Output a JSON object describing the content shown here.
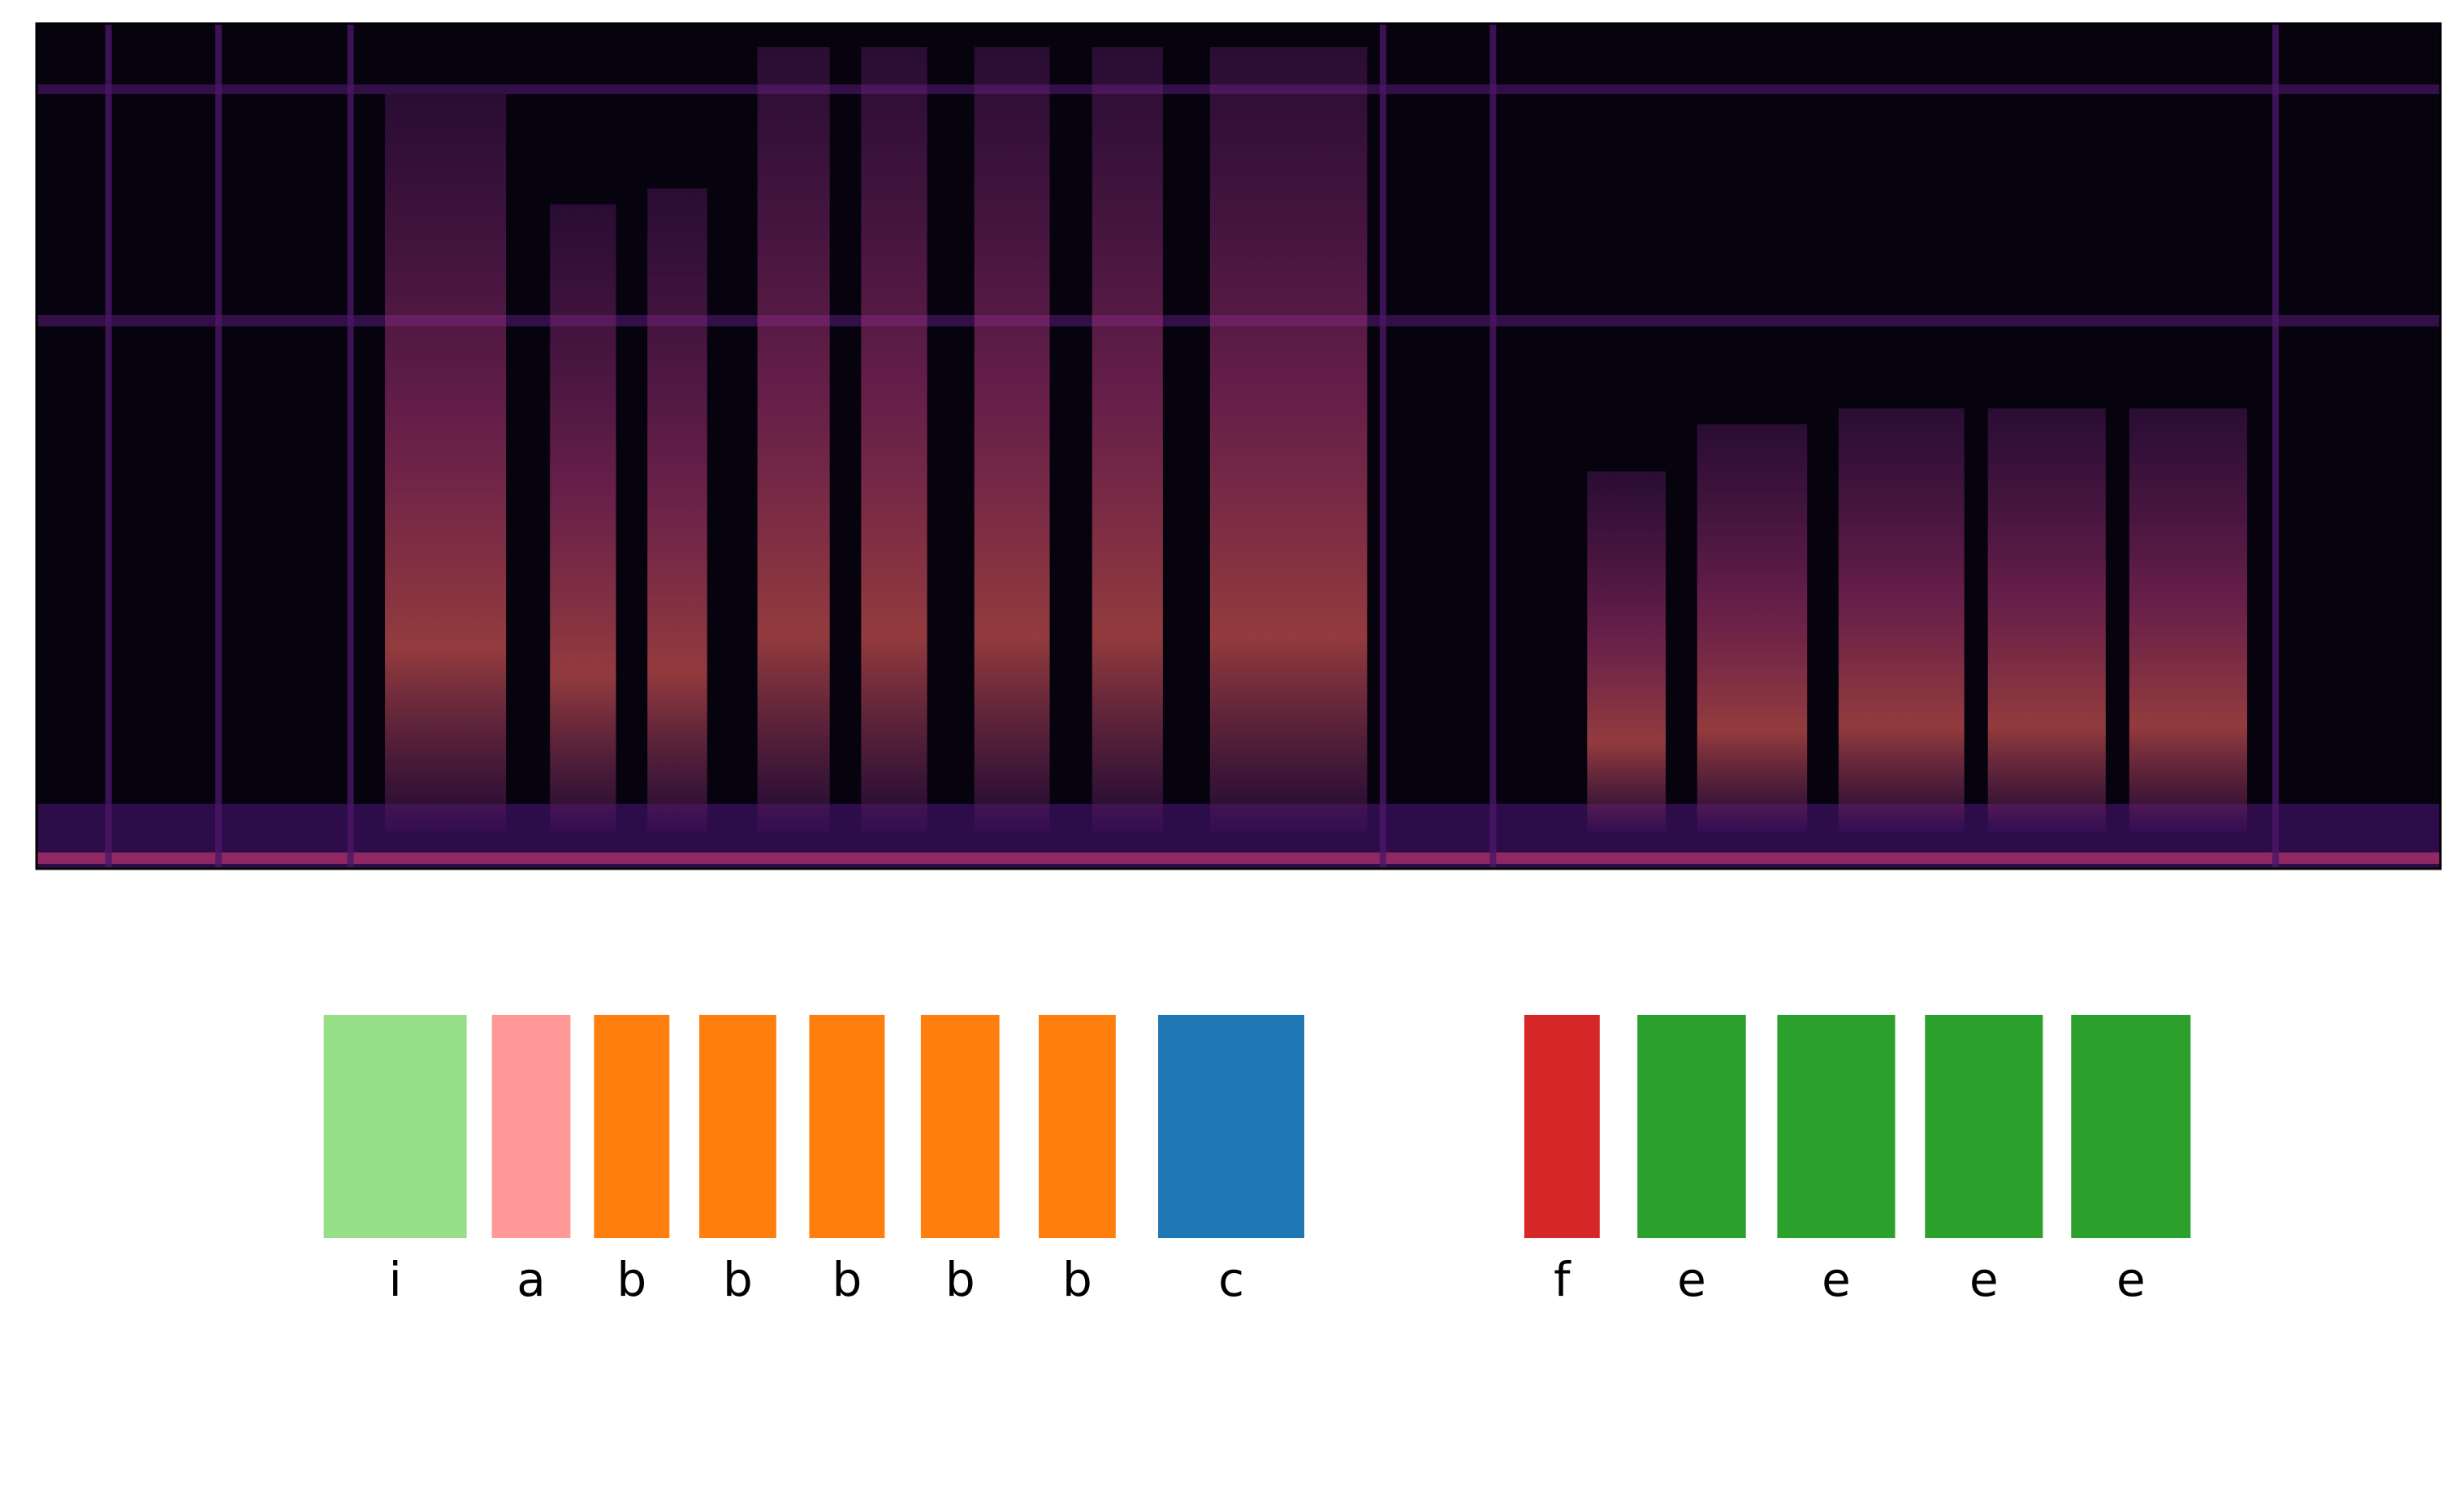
{
  "segments": [
    {
      "label": "i",
      "color": "#98df8a"
    },
    {
      "label": "a",
      "color": "#ff9896"
    },
    {
      "label": "b",
      "color": "#ff7f0e"
    },
    {
      "label": "b",
      "color": "#ff7f0e"
    },
    {
      "label": "b",
      "color": "#ff7f0e"
    },
    {
      "label": "b",
      "color": "#ff7f0e"
    },
    {
      "label": "b",
      "color": "#ff7f0e"
    },
    {
      "label": "c",
      "color": "#1f77b4"
    },
    {
      "label": "f",
      "color": "#d62728"
    },
    {
      "label": "e",
      "color": "#2ca02c"
    },
    {
      "label": "e",
      "color": "#2ca02c"
    },
    {
      "label": "e",
      "color": "#2ca02c"
    },
    {
      "label": "e",
      "color": "#2ca02c"
    }
  ]
}
